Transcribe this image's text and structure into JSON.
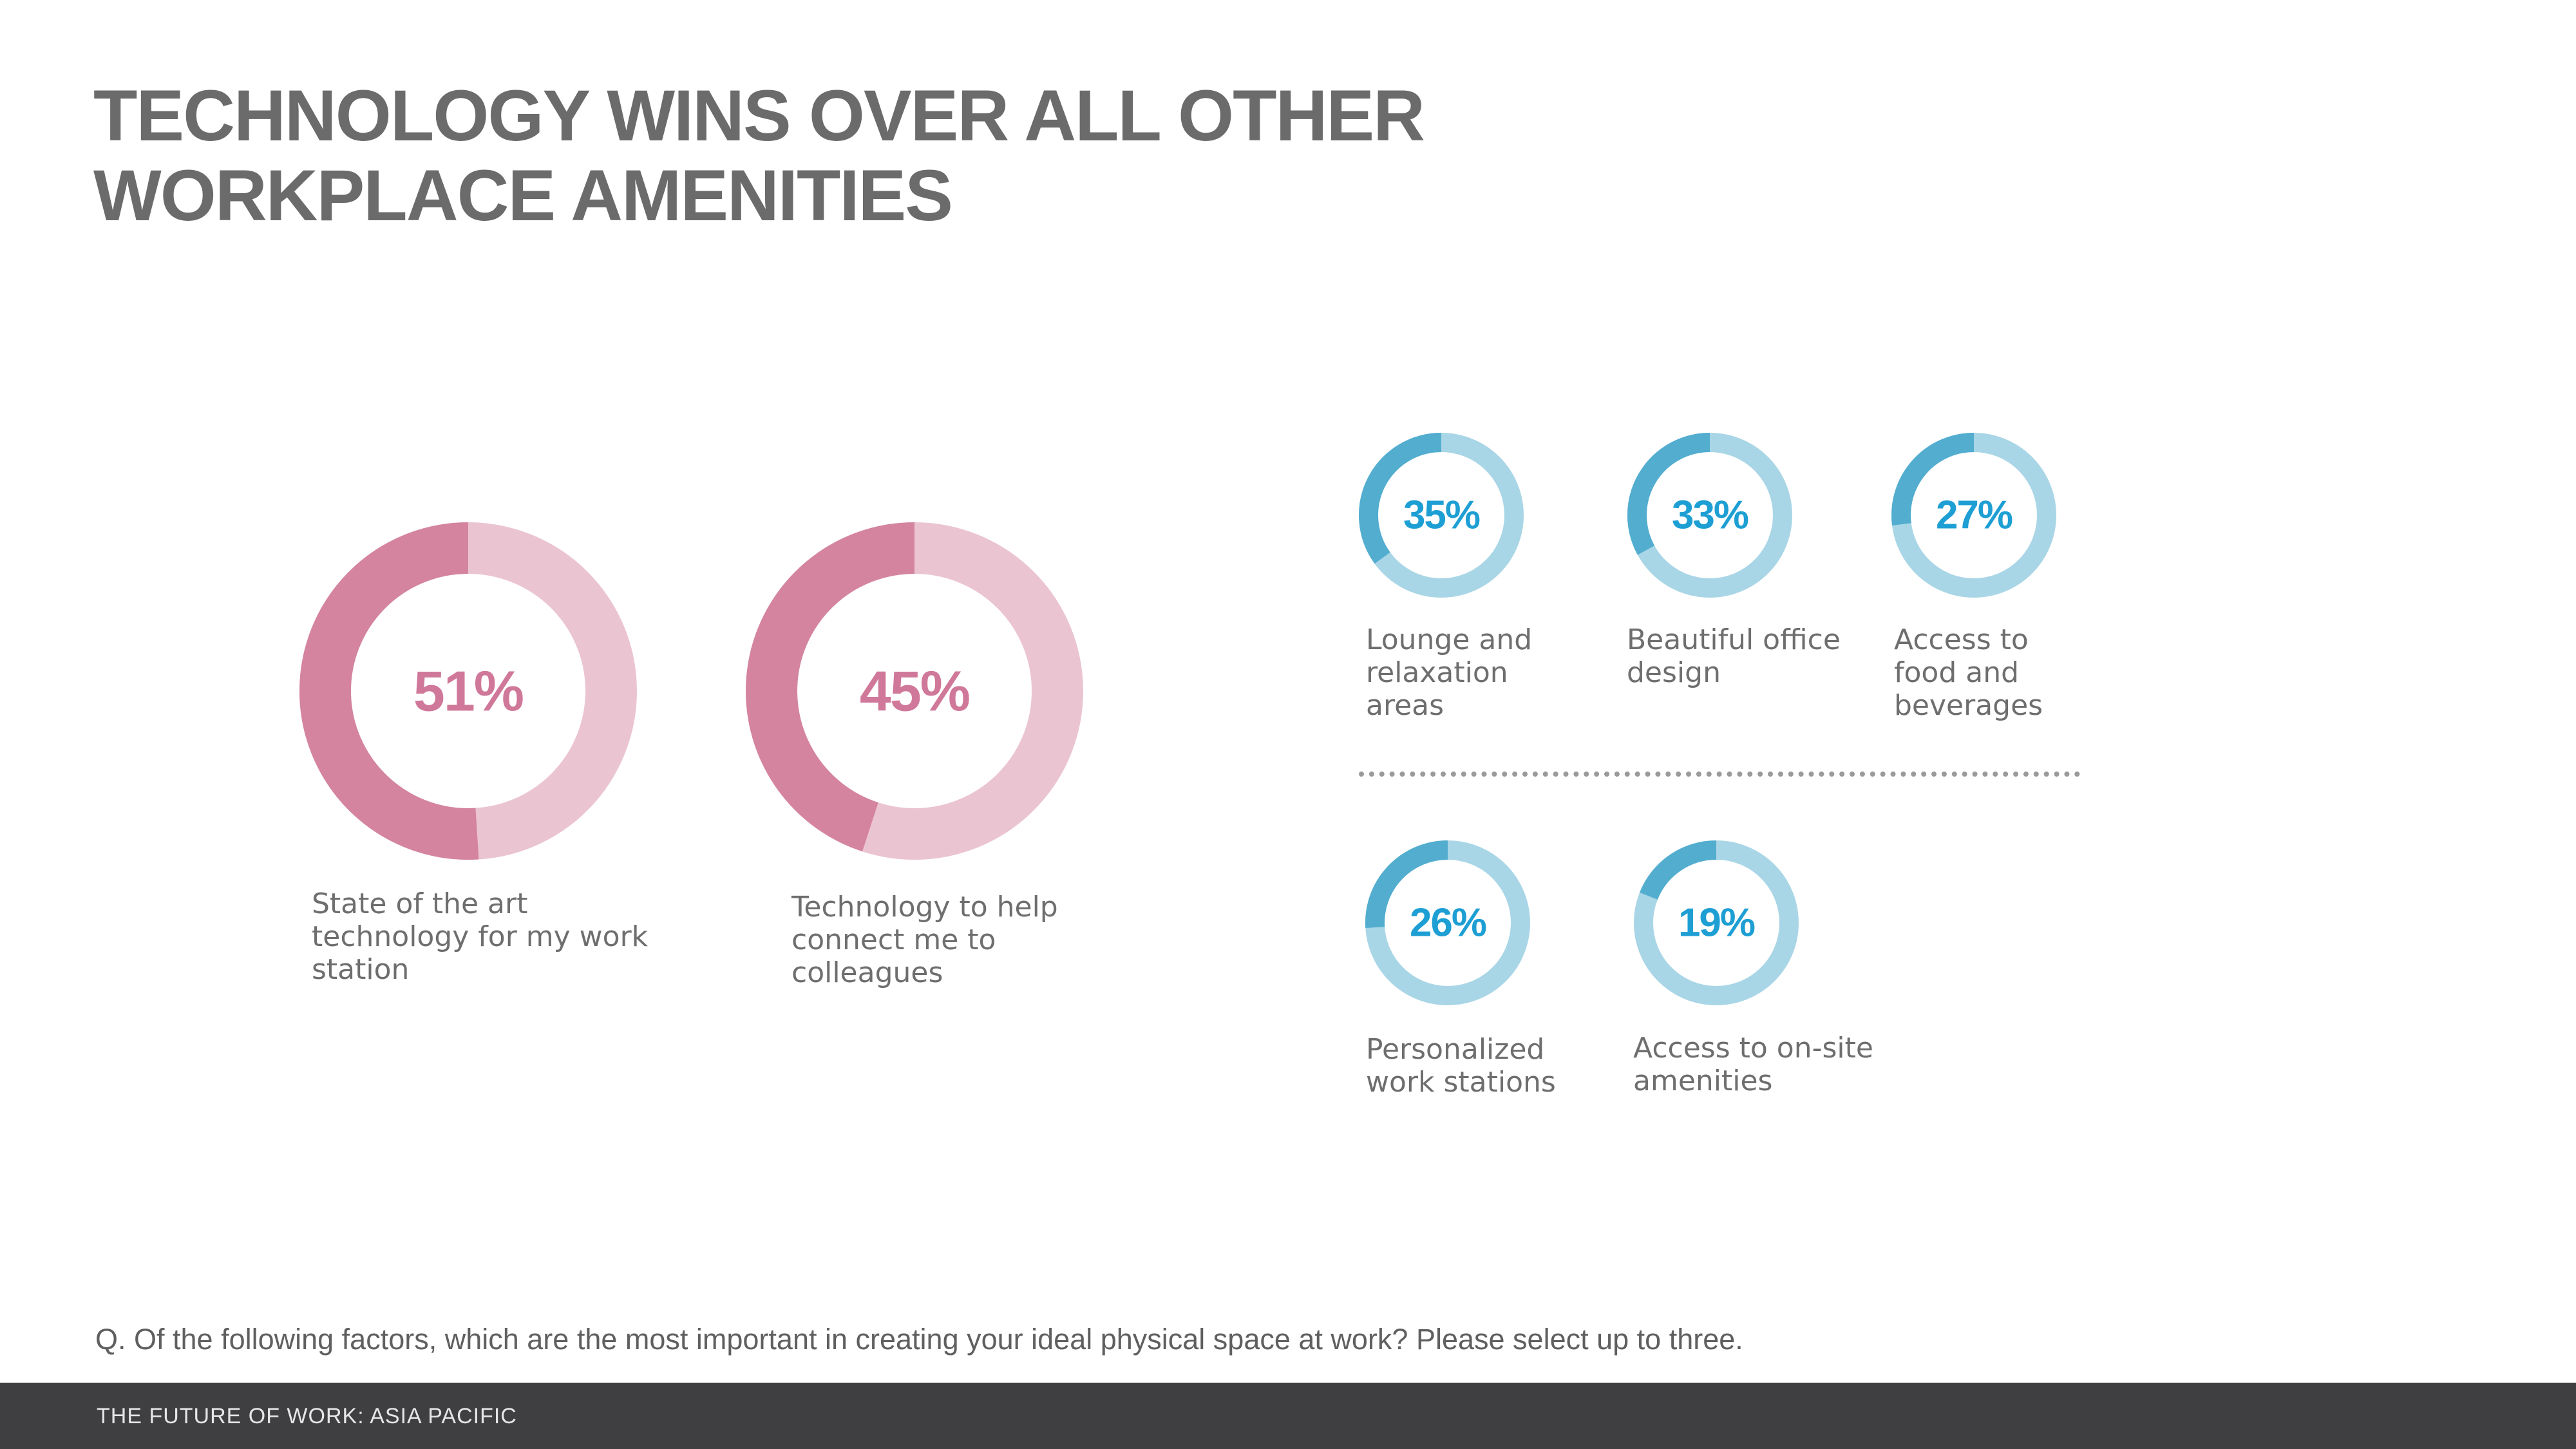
{
  "title_lines": [
    "TECHNOLOGY WINS OVER ALL OTHER",
    "WORKPLACE AMENITIES"
  ],
  "colors": {
    "pink_dark": "#d4849f",
    "pink_light": "#ebc4d2",
    "pink_text": "#d07899",
    "blue_dark": "#52adcf",
    "blue_light": "#a9d6e6",
    "blue_text": "#1e9fd4",
    "title": "#6b6b6b",
    "footer_bg": "#3f3f41"
  },
  "chart_data": {
    "type": "pie",
    "variant": "donut",
    "title": "TECHNOLOGY WINS OVER ALL OTHER WORKPLACE AMENITIES",
    "unit": "%",
    "items": [
      {
        "label": "State of the art technology for my work station",
        "label_lines": [
          "State of the art",
          "technology for my work",
          "station"
        ],
        "value": 51,
        "display": "51%",
        "group": "technology"
      },
      {
        "label": "Technology to help connect me to colleagues",
        "label_lines": [
          "Technology to help",
          "connect me to",
          "colleagues"
        ],
        "value": 45,
        "display": "45%",
        "group": "technology"
      },
      {
        "label": "Lounge and relaxation areas",
        "label_lines": [
          "Lounge and",
          "relaxation",
          "areas"
        ],
        "value": 35,
        "display": "35%",
        "group": "amenities"
      },
      {
        "label": "Beautiful office design",
        "label_lines": [
          "Beautiful office",
          "design"
        ],
        "value": 33,
        "display": "33%",
        "group": "amenities"
      },
      {
        "label": "Access to food and beverages",
        "label_lines": [
          "Access to",
          "food and",
          "beverages"
        ],
        "value": 27,
        "display": "27%",
        "group": "amenities"
      },
      {
        "label": "Personalized work stations",
        "label_lines": [
          "Personalized",
          "work stations"
        ],
        "value": 26,
        "display": "26%",
        "group": "amenities"
      },
      {
        "label": "Access to on-site amenities",
        "label_lines": [
          "Access to on-site",
          "amenities"
        ],
        "value": 19,
        "display": "19%",
        "group": "amenities"
      }
    ]
  },
  "question": "Q. Of the following factors, which are the most important in creating your ideal physical space at work? Please select up to three.",
  "footer": "THE FUTURE OF WORK: ASIA PACIFIC"
}
